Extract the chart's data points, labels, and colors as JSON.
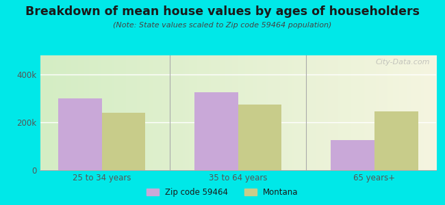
{
  "title": "Breakdown of mean house values by ages of householders",
  "subtitle": "(Note: State values scaled to Zip code 59464 population)",
  "categories": [
    "25 to 34 years",
    "35 to 64 years",
    "65 years+"
  ],
  "zip_values": [
    300000,
    325000,
    125000
  ],
  "state_values": [
    240000,
    275000,
    245000
  ],
  "zip_color": "#c9a8d8",
  "state_color": "#c8cc8a",
  "background_outer": "#00e8e8",
  "ylim": [
    0,
    480000
  ],
  "yticks": [
    0,
    200000,
    400000
  ],
  "ytick_labels": [
    "0",
    "200k",
    "400k"
  ],
  "bar_width": 0.32,
  "legend_zip": "Zip code 59464",
  "legend_state": "Montana",
  "watermark": "City-Data.com",
  "title_color": "#1a1a1a",
  "subtitle_color": "#444444",
  "tick_color": "#555555",
  "separator_color": "#aaaaaa",
  "grid_color": "#ffffff"
}
